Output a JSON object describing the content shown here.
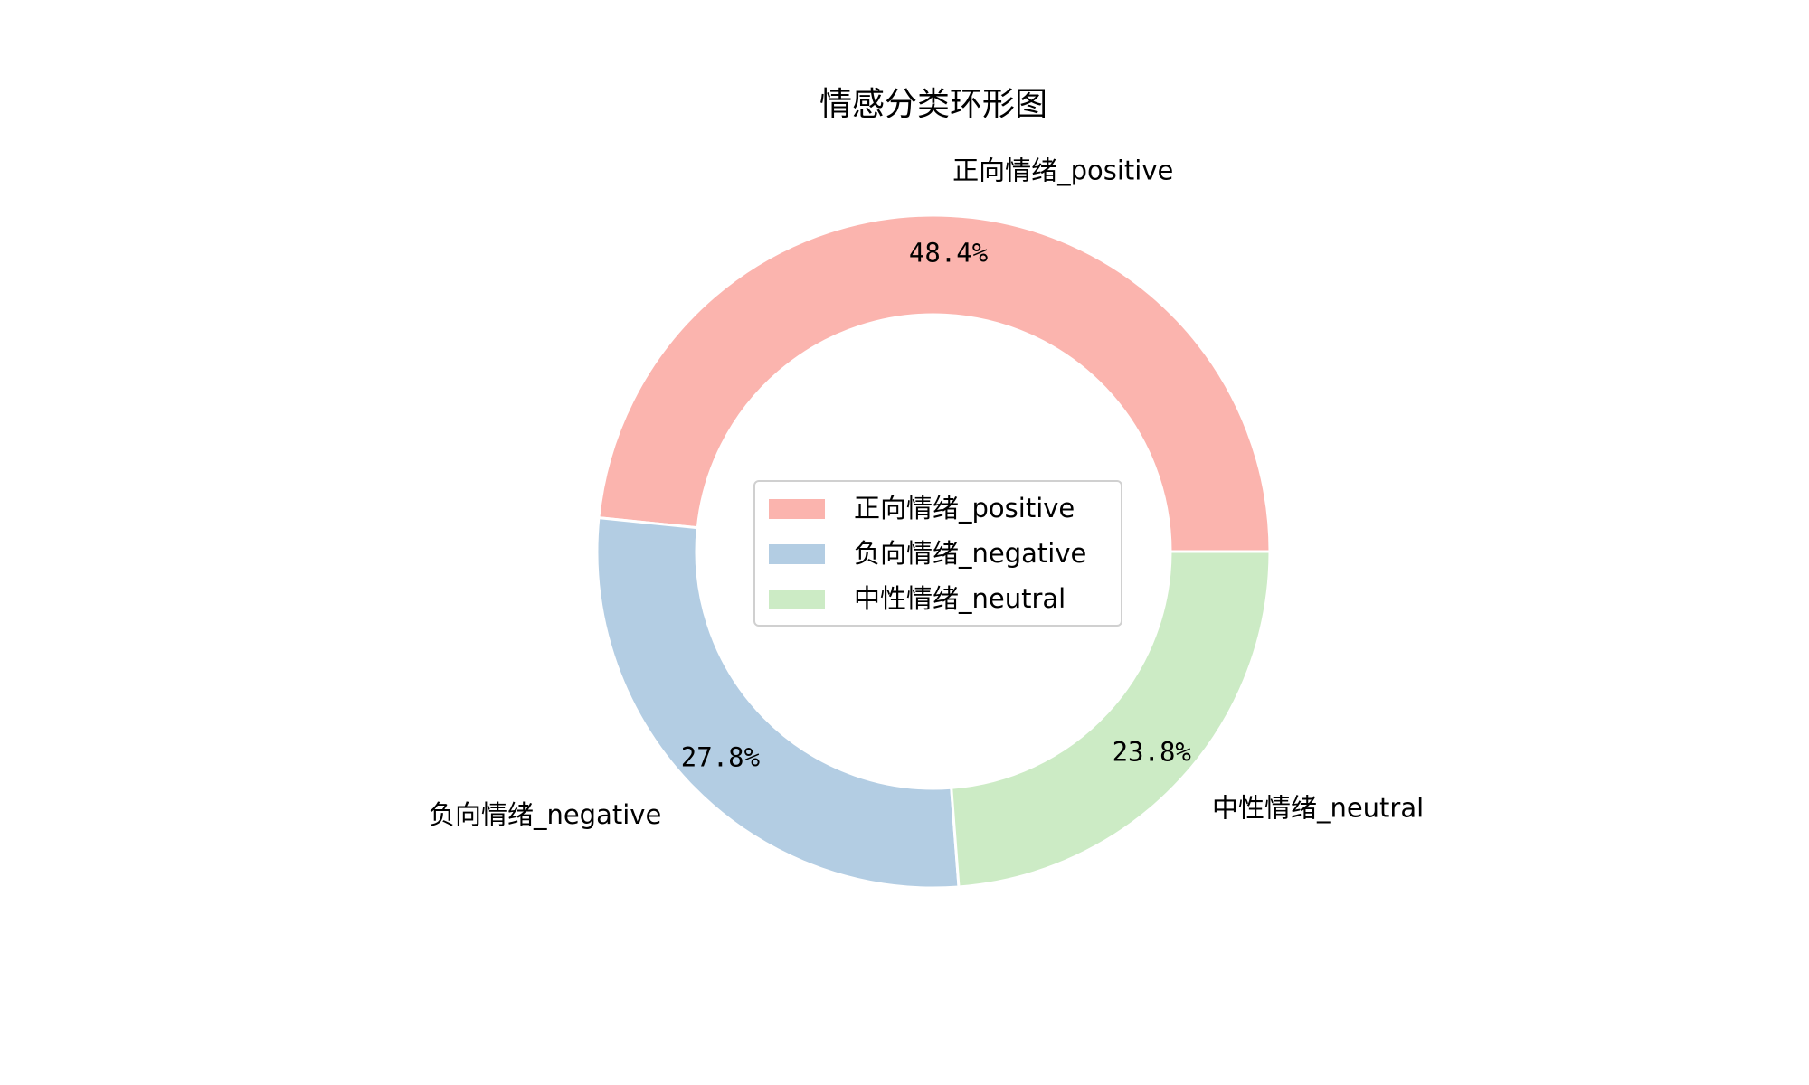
{
  "chart_data": {
    "type": "pie",
    "variant": "donut",
    "title": "情感分类环形图",
    "labels": [
      "正向情绪_positive",
      "负向情绪_negative",
      "中性情绪_neutral"
    ],
    "values": [
      48.4,
      27.8,
      23.8
    ],
    "percent_labels": [
      "48.4%",
      "27.8%",
      "23.8%"
    ],
    "colors": [
      "#fbb4ae",
      "#b3cde3",
      "#ccebc5"
    ],
    "start_angle_deg": 0,
    "direction": "counterclockwise",
    "legend_entries": [
      "正向情绪_positive",
      "负向情绪_negative",
      "中性情绪_neutral"
    ],
    "legend_placement": "center",
    "grid": false
  }
}
